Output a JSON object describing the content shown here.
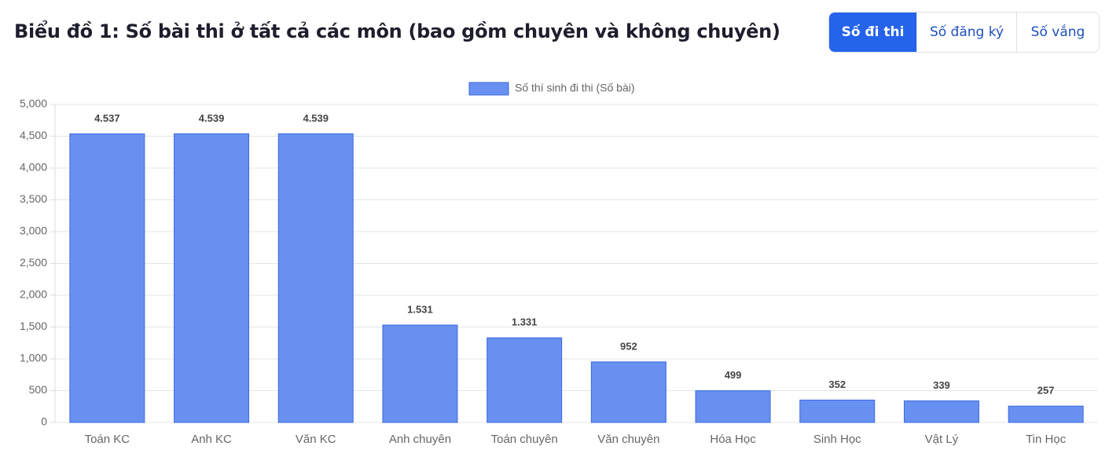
{
  "header": {
    "title": "Biểu đồ 1: Số bài thi ở tất cả các môn (bao gồm chuyên và không chuyên)",
    "buttons": [
      "Số đi thi",
      "Số đăng ký",
      "Số vắng"
    ]
  },
  "chart_data": {
    "type": "bar",
    "categories": [
      "Toán KC",
      "Anh KC",
      "Văn KC",
      "Anh chuyên",
      "Toán chuyên",
      "Văn chuyên",
      "Hóa Học",
      "Sinh Học",
      "Vật Lý",
      "Tin Học"
    ],
    "series": [
      {
        "name": "Số thí sinh đi thi (Số bài)",
        "color": "#6890f0",
        "values": [
          4537,
          4539,
          4539,
          1531,
          1331,
          952,
          499,
          352,
          339,
          257
        ],
        "value_labels": [
          "4.537",
          "4.539",
          "4.539",
          "1.531",
          "1.331",
          "952",
          "499",
          "352",
          "339",
          "257"
        ]
      }
    ],
    "ylim": [
      0,
      5000
    ],
    "yticks": [
      0,
      500,
      {
        "value": 1000,
        "label": "1,000"
      },
      {
        "value": 1500,
        "label": "1,500"
      },
      {
        "value": 2000,
        "label": "2,000"
      },
      {
        "value": 2500,
        "label": "2,500"
      },
      {
        "value": 3000,
        "label": "3,000"
      },
      {
        "value": 3500,
        "label": "3,500"
      },
      {
        "value": 4000,
        "label": "4,000"
      },
      {
        "value": 4500,
        "label": "4,500"
      },
      {
        "value": 5000,
        "label": "5,000"
      }
    ],
    "grid": true,
    "legend": "top"
  }
}
